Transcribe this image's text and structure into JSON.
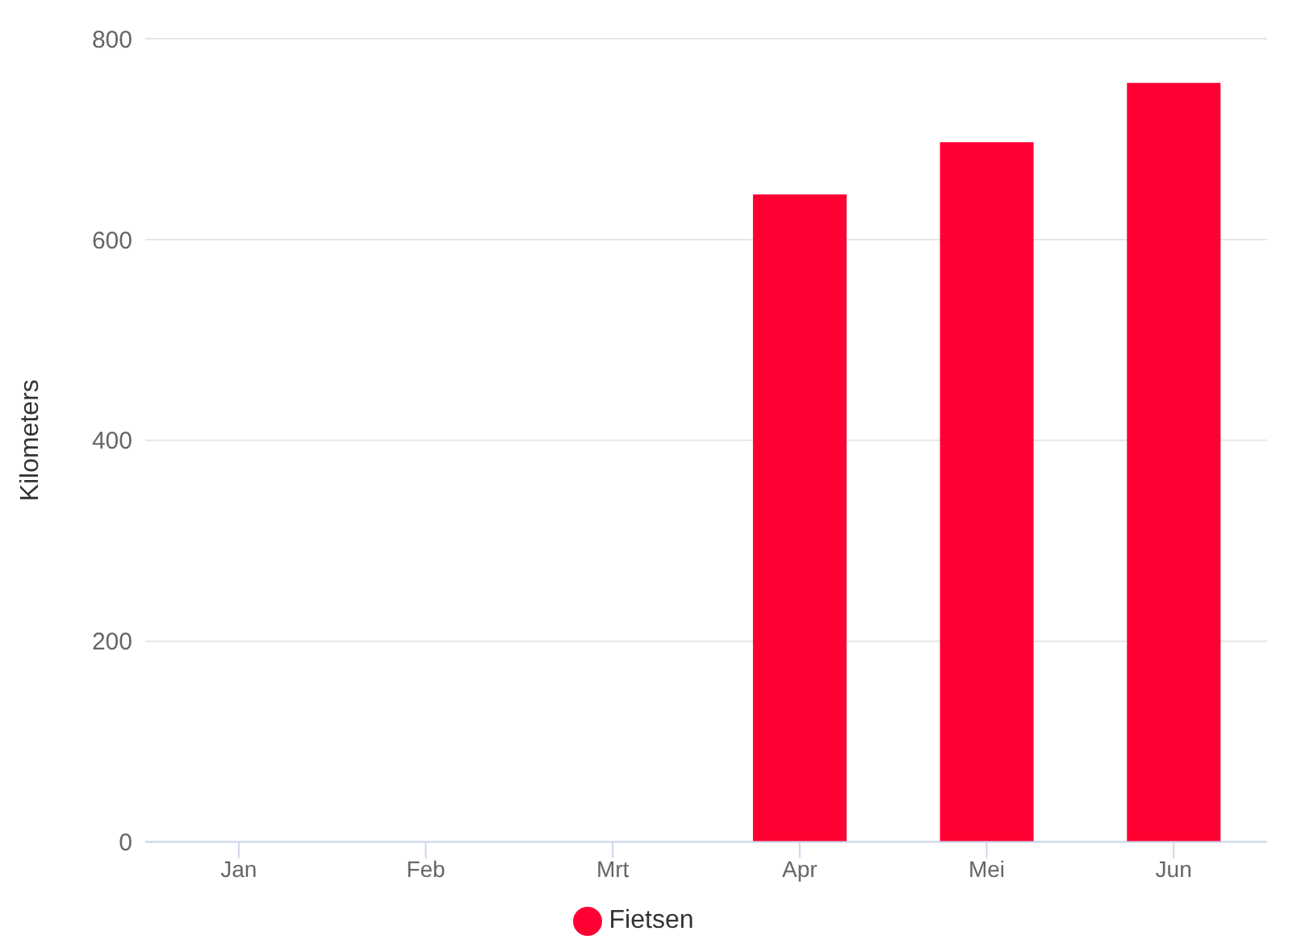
{
  "chart_data": {
    "type": "bar",
    "ylabel": "Kilometers",
    "categories": [
      "Jan",
      "Feb",
      "Mrt",
      "Apr",
      "Mei",
      "Jun"
    ],
    "series": [
      {
        "name": "Fietsen",
        "color": "#ff0033",
        "values": [
          null,
          null,
          null,
          645,
          697,
          756
        ]
      }
    ],
    "ylim": [
      0,
      800
    ],
    "yticks": [
      0,
      200,
      400,
      600,
      800
    ],
    "grid": "y",
    "legend": "bottom"
  }
}
